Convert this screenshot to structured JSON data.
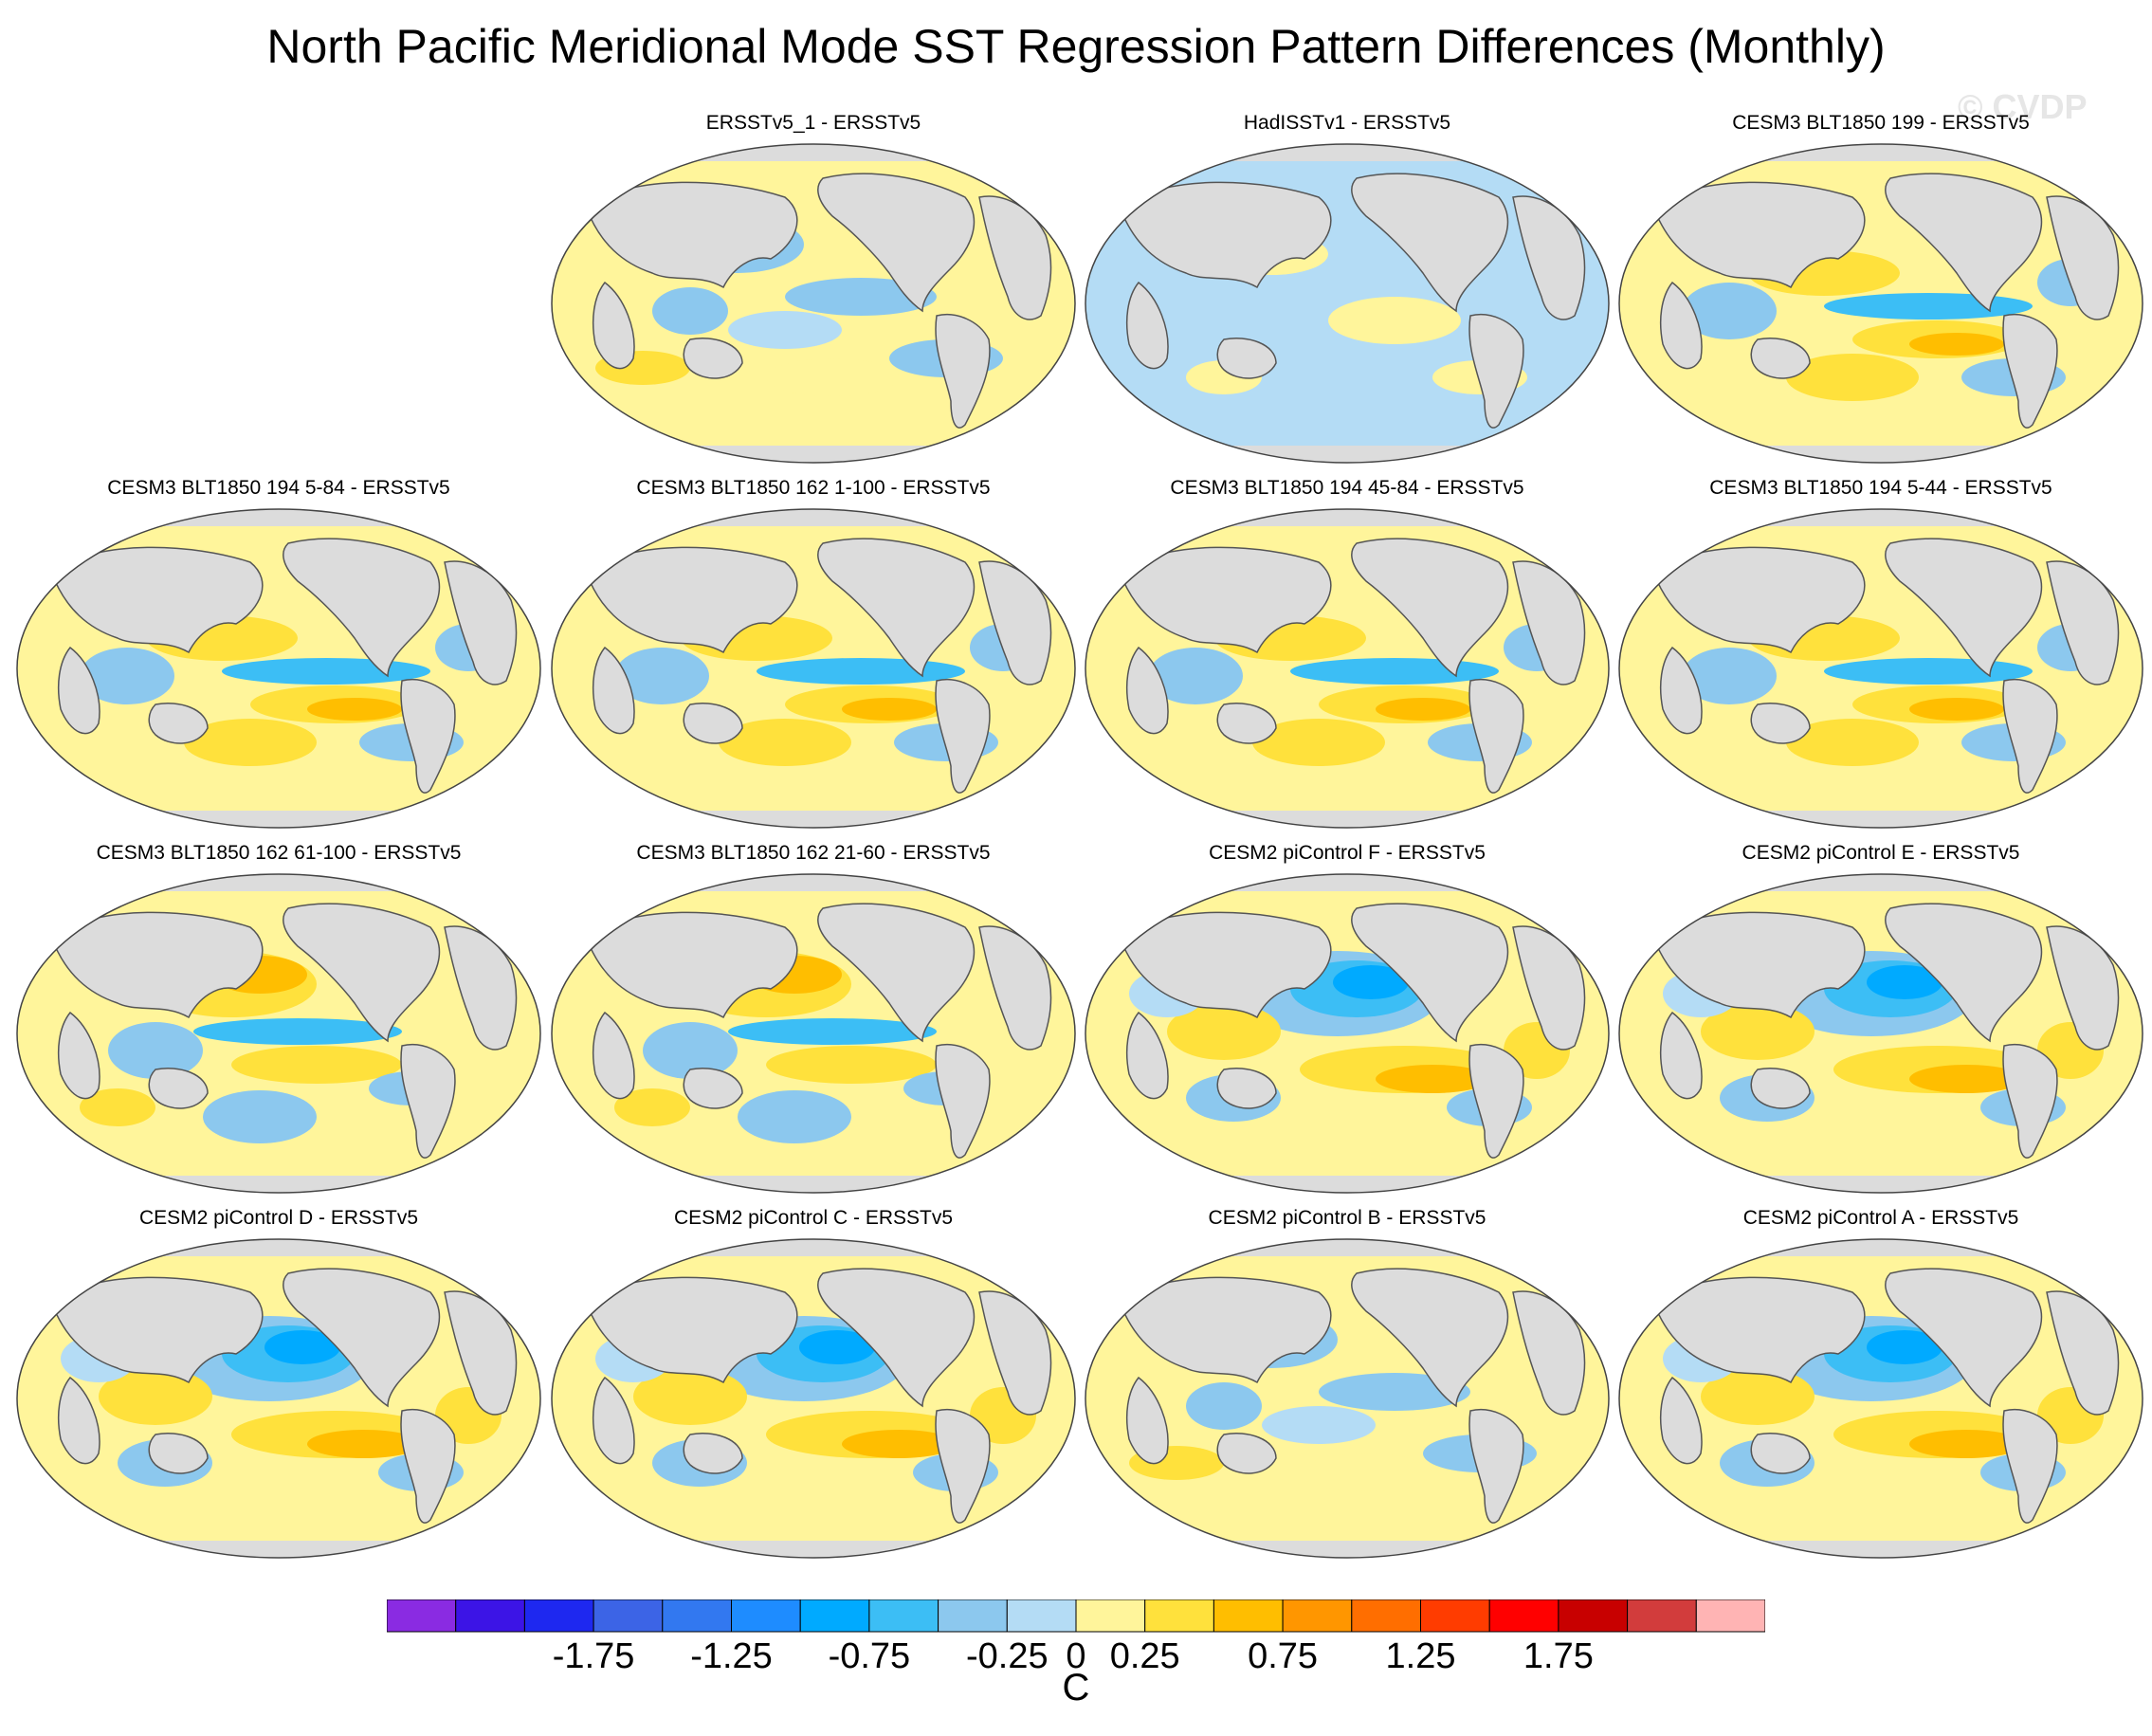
{
  "title": "North Pacific Meridional Mode SST Regression Pattern Differences (Monthly)",
  "watermark": "© CVDP",
  "land_color": "#dcdcdc",
  "coast_color": "#555555",
  "panels": [
    {
      "label": "ERSSTv5_1 - ERSSTv5",
      "pattern": "mixed-weak"
    },
    {
      "label": "HadISSTv1 - ERSSTv5",
      "pattern": "cool-weak"
    },
    {
      "label": "CESM3 BLT1850 199 - ERSSTv5",
      "pattern": "warm-east-cool-equator"
    },
    {
      "label": "CESM3 BLT1850 194 5-84 - ERSSTv5",
      "pattern": "warm-east-cool-equator"
    },
    {
      "label": "CESM3 BLT1850 162 1-100 - ERSSTv5",
      "pattern": "warm-east-cool-equator"
    },
    {
      "label": "CESM3 BLT1850 194 45-84 - ERSSTv5",
      "pattern": "warm-east-cool-equator"
    },
    {
      "label": "CESM3 BLT1850 194 5-44 - ERSSTv5",
      "pattern": "warm-east-cool-equator"
    },
    {
      "label": "CESM3 BLT1850 162 61-100 - ERSSTv5",
      "pattern": "warm-north-cool-equator"
    },
    {
      "label": "CESM3 BLT1850 162 21-60 - ERSSTv5",
      "pattern": "warm-north-cool-equator"
    },
    {
      "label": "CESM2 piControl F - ERSSTv5",
      "pattern": "cool-north-warm-southeast"
    },
    {
      "label": "CESM2 piControl E - ERSSTv5",
      "pattern": "cool-north-warm-southeast"
    },
    {
      "label": "CESM2 piControl D - ERSSTv5",
      "pattern": "cool-north-warm-southeast"
    },
    {
      "label": "CESM2 piControl C - ERSSTv5",
      "pattern": "cool-north-warm-southeast"
    },
    {
      "label": "CESM2 piControl B - ERSSTv5",
      "pattern": "mixed-weak"
    },
    {
      "label": "CESM2 piControl A - ERSSTv5",
      "pattern": "cool-north-warm-southeast"
    }
  ],
  "colorbar": {
    "unit": "C",
    "colors": [
      "#8a2be2",
      "#3c14e6",
      "#1e28f0",
      "#3c64e6",
      "#3278f0",
      "#1e8cff",
      "#00aaff",
      "#3cbef5",
      "#8cc8ee",
      "#b4dcf5",
      "#fff59b",
      "#ffe13c",
      "#ffbe00",
      "#ff9600",
      "#ff6e00",
      "#ff3c00",
      "#ff0000",
      "#c80000",
      "#d23c3c",
      "#ffb4b4"
    ],
    "tick_labels": [
      "-1.75",
      "-1.25",
      "-0.75",
      "-0.25",
      "0",
      "0.25",
      "0.75",
      "1.25",
      "1.75"
    ],
    "tick_values": [
      -1.75,
      -1.25,
      -0.75,
      -0.25,
      0,
      0.25,
      0.75,
      1.25,
      1.75
    ]
  }
}
